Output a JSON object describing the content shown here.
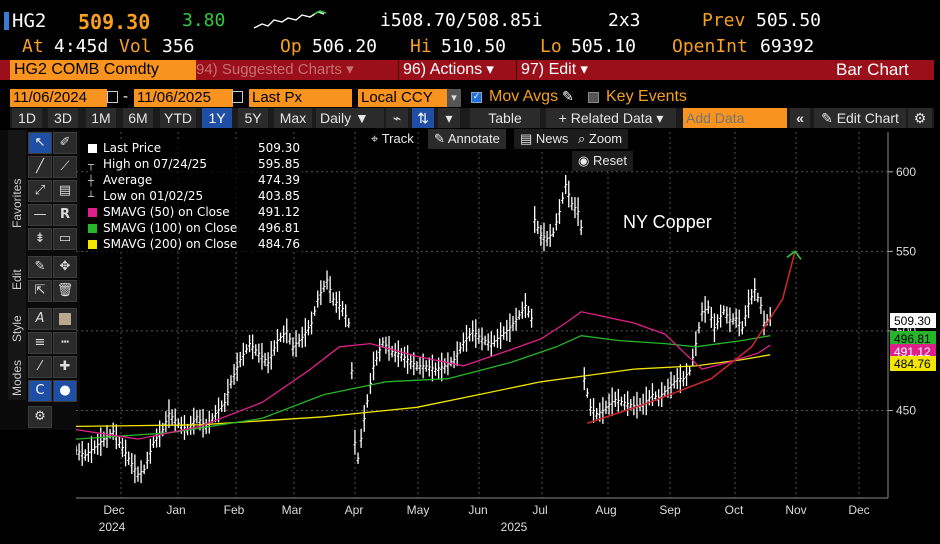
{
  "quote": {
    "ticker": "HG2",
    "last": "509.30",
    "change": "3.80",
    "bid_ask": "i508.70/508.85i",
    "size": "2x3",
    "prev_label": "Prev",
    "prev": "505.50",
    "at_label": "At",
    "time": "4:45d",
    "vol_label": "Vol",
    "vol": "356",
    "op_label": "Op",
    "op": "506.20",
    "hi_label": "Hi",
    "hi": "510.50",
    "lo_label": "Lo",
    "lo": "505.10",
    "oi_label": "OpenInt",
    "oi": "69392"
  },
  "toolbar": {
    "security": "HG2 COMB Comdty",
    "suggested": "94) Suggested Charts",
    "actions": "96) Actions",
    "edit": "97) Edit",
    "chart_type": "Bar Chart",
    "date_from": "11/06/2024",
    "date_to": "11/06/2025",
    "price_field": "Last Px",
    "currency": "Local CCY",
    "mov_avgs": "Mov Avgs",
    "key_events": "Key Events",
    "ranges": [
      "1D",
      "3D",
      "1M",
      "6M",
      "YTD",
      "1Y",
      "5Y",
      "Max"
    ],
    "selected_range": "1Y",
    "period": "Daily",
    "table": "Table",
    "related": "+ Related Data",
    "add_data_placeholder": "Add Data",
    "edit_chart": "Edit Chart"
  },
  "chart_controls": {
    "track": "Track",
    "annotate": "Annotate",
    "news": "News",
    "zoom": "Zoom",
    "reset": "Reset"
  },
  "side_tabs": [
    "Favorites",
    "Edit",
    "Style",
    "Modes"
  ],
  "legend": [
    {
      "label": "Last Price",
      "value": "509.30",
      "color": "#ffffff"
    },
    {
      "label": "High on 07/24/25",
      "value": "595.85",
      "color": ""
    },
    {
      "label": "Average",
      "value": "474.39",
      "color": ""
    },
    {
      "label": "Low on 01/02/25",
      "value": "403.85",
      "color": ""
    },
    {
      "label": "SMAVG (50)  on Close",
      "value": "491.12",
      "color": "#e0208a"
    },
    {
      "label": "SMAVG (100)  on Close",
      "value": "496.81",
      "color": "#27b52a"
    },
    {
      "label": "SMAVG (200)  on Close",
      "value": "484.76",
      "color": "#f2e600"
    }
  ],
  "annotation_text": "NY Copper",
  "chart_data": {
    "type": "bar",
    "ylim": [
      395,
      625
    ],
    "y_ticks": [
      450,
      500,
      550,
      600
    ],
    "x_ticks": [
      "Dec",
      "Jan",
      "Feb",
      "Mar",
      "Apr",
      "May",
      "Jun",
      "Jul",
      "Aug",
      "Sep",
      "Oct",
      "Nov",
      "Dec"
    ],
    "year_labels": [
      "2024",
      "2025"
    ],
    "price_tags": [
      {
        "value": "509.30",
        "bg": "#ffffff",
        "fg": "#000000"
      },
      {
        "value": "496.81",
        "bg": "#27b52a",
        "fg": "#000000"
      },
      {
        "value": "491.12",
        "bg": "#e0208a",
        "fg": "#ffffff"
      },
      {
        "value": "484.76",
        "bg": "#f2e600",
        "fg": "#000000"
      }
    ],
    "price_path": [
      [
        0,
        425
      ],
      [
        3,
        422
      ],
      [
        6,
        427
      ],
      [
        9,
        432
      ],
      [
        12,
        437
      ],
      [
        14,
        430
      ],
      [
        17,
        420
      ],
      [
        20,
        410
      ],
      [
        22,
        413
      ],
      [
        25,
        430
      ],
      [
        28,
        438
      ],
      [
        30,
        448
      ],
      [
        33,
        442
      ],
      [
        36,
        438
      ],
      [
        39,
        446
      ],
      [
        42,
        440
      ],
      [
        45,
        448
      ],
      [
        48,
        455
      ],
      [
        50,
        468
      ],
      [
        53,
        482
      ],
      [
        56,
        492
      ],
      [
        59,
        486
      ],
      [
        62,
        480
      ],
      [
        65,
        494
      ],
      [
        68,
        500
      ],
      [
        70,
        490
      ],
      [
        73,
        496
      ],
      [
        76,
        505
      ],
      [
        78,
        520
      ],
      [
        81,
        532
      ],
      [
        83,
        520
      ],
      [
        86,
        514
      ],
      [
        88,
        505
      ],
      [
        89,
        475
      ],
      [
        90,
        430
      ],
      [
        91,
        420
      ],
      [
        93,
        445
      ],
      [
        96,
        478
      ],
      [
        99,
        493
      ],
      [
        102,
        487
      ],
      [
        105,
        485
      ],
      [
        107,
        482
      ],
      [
        110,
        478
      ],
      [
        113,
        478
      ],
      [
        116,
        476
      ],
      [
        119,
        478
      ],
      [
        122,
        482
      ],
      [
        125,
        493
      ],
      [
        128,
        500
      ],
      [
        131,
        495
      ],
      [
        134,
        492
      ],
      [
        137,
        497
      ],
      [
        140,
        502
      ],
      [
        143,
        510
      ],
      [
        145,
        516
      ],
      [
        147,
        508
      ],
      [
        148,
        570
      ],
      [
        150,
        560
      ],
      [
        152,
        558
      ],
      [
        154,
        562
      ],
      [
        156,
        575
      ],
      [
        158,
        592
      ],
      [
        160,
        580
      ],
      [
        162,
        575
      ],
      [
        163,
        565
      ],
      [
        164,
        470
      ],
      [
        166,
        452
      ],
      [
        168,
        448
      ],
      [
        170,
        450
      ],
      [
        172,
        454
      ],
      [
        174,
        457
      ],
      [
        177,
        455
      ],
      [
        180,
        453
      ],
      [
        183,
        454
      ],
      [
        186,
        460
      ],
      [
        188,
        458
      ],
      [
        191,
        464
      ],
      [
        194,
        470
      ],
      [
        196,
        470
      ],
      [
        198,
        475
      ],
      [
        200,
        492
      ],
      [
        202,
        512
      ],
      [
        204,
        515
      ],
      [
        206,
        502
      ],
      [
        209,
        513
      ],
      [
        211,
        507
      ],
      [
        213,
        508
      ],
      [
        215,
        502
      ],
      [
        217,
        517
      ],
      [
        219,
        526
      ],
      [
        221,
        516
      ],
      [
        222,
        505
      ],
      [
        224,
        509
      ]
    ],
    "sma50": [
      [
        0,
        438
      ],
      [
        20,
        432
      ],
      [
        40,
        440
      ],
      [
        60,
        455
      ],
      [
        75,
        475
      ],
      [
        85,
        490
      ],
      [
        95,
        492
      ],
      [
        110,
        484
      ],
      [
        125,
        478
      ],
      [
        140,
        488
      ],
      [
        150,
        495
      ],
      [
        158,
        505
      ],
      [
        163,
        512
      ],
      [
        168,
        510
      ],
      [
        180,
        505
      ],
      [
        190,
        498
      ],
      [
        197,
        485
      ],
      [
        202,
        476
      ],
      [
        210,
        480
      ],
      [
        220,
        486
      ],
      [
        224,
        491
      ]
    ],
    "sma100": [
      [
        0,
        432
      ],
      [
        30,
        436
      ],
      [
        60,
        445
      ],
      [
        80,
        460
      ],
      [
        100,
        468
      ],
      [
        120,
        470
      ],
      [
        140,
        480
      ],
      [
        155,
        490
      ],
      [
        163,
        497
      ],
      [
        175,
        494
      ],
      [
        190,
        492
      ],
      [
        200,
        490
      ],
      [
        215,
        494
      ],
      [
        224,
        497
      ]
    ],
    "sma200": [
      [
        0,
        440
      ],
      [
        40,
        441
      ],
      [
        80,
        446
      ],
      [
        110,
        452
      ],
      [
        130,
        460
      ],
      [
        150,
        468
      ],
      [
        165,
        472
      ],
      [
        180,
        476
      ],
      [
        200,
        478
      ],
      [
        215,
        482
      ],
      [
        224,
        485
      ]
    ],
    "arrow_curve": [
      [
        165,
        442
      ],
      [
        185,
        455
      ],
      [
        205,
        470
      ],
      [
        218,
        490
      ],
      [
        228,
        520
      ],
      [
        232,
        550
      ]
    ]
  }
}
